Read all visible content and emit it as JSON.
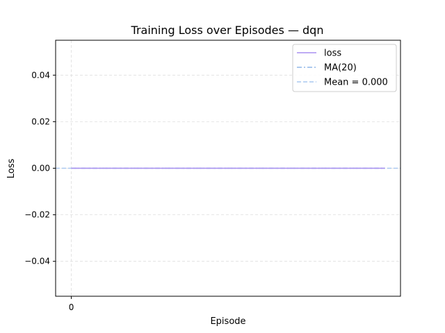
{
  "chart_data": {
    "type": "line",
    "title": "Training Loss over Episodes — dqn",
    "xlabel": "Episode",
    "ylabel": "Loss",
    "xlim": [
      -0.05,
      1.05
    ],
    "ylim": [
      -0.055,
      0.055
    ],
    "x_ticks": [
      0
    ],
    "x_tick_labels": [
      "0"
    ],
    "y_ticks": [
      0.04,
      0.02,
      0.0,
      -0.02,
      -0.04
    ],
    "y_tick_labels": [
      "0.04",
      "0.02",
      "0.00",
      "−0.02",
      "−0.04"
    ],
    "grid": true,
    "legend_position": "top-right",
    "series": [
      {
        "name": "loss",
        "style": "solid",
        "color": "#a98ff0",
        "x": [
          0,
          1
        ],
        "y": [
          0.0,
          0.0
        ]
      },
      {
        "name": "MA(20)",
        "style": "dashdot",
        "color": "#8fb6e8",
        "x": [
          0,
          1
        ],
        "y": [
          0.0,
          0.0
        ]
      },
      {
        "name": "Mean = 0.000",
        "style": "dashed",
        "color": "#a9c8f0",
        "x": [
          -0.05,
          1.05
        ],
        "y": [
          0.0,
          0.0
        ]
      }
    ]
  }
}
